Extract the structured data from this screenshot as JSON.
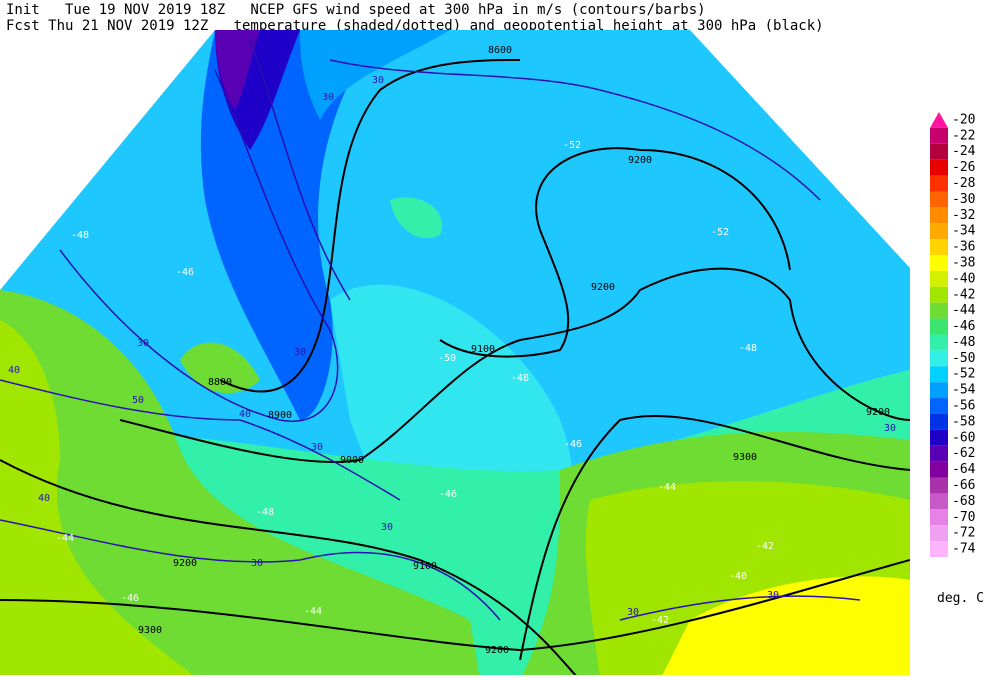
{
  "header": {
    "line1": "Init   Tue 19 NOV 2019 18Z   NCEP GFS wind speed at 300 hPa in m/s (contours/barbs)",
    "line2": "Fcst Thu 21 NOV 2019 12Z   temperature (shaded/dotted) and geopotential height at 300 hPa (black)"
  },
  "colorbar": {
    "unit": "deg. C",
    "entries": [
      {
        "value": -20,
        "color": "#ff14a0"
      },
      {
        "value": -22,
        "color": "#c8006e"
      },
      {
        "value": -24,
        "color": "#b4003c"
      },
      {
        "value": -26,
        "color": "#e60000"
      },
      {
        "value": -28,
        "color": "#ff3200"
      },
      {
        "value": -30,
        "color": "#ff6400"
      },
      {
        "value": -32,
        "color": "#ff8c00"
      },
      {
        "value": -34,
        "color": "#ffaa00"
      },
      {
        "value": -36,
        "color": "#ffd200"
      },
      {
        "value": -38,
        "color": "#ffff00"
      },
      {
        "value": -40,
        "color": "#d2f000"
      },
      {
        "value": -42,
        "color": "#a0e600"
      },
      {
        "value": -44,
        "color": "#6edc32"
      },
      {
        "value": -46,
        "color": "#3ce66e"
      },
      {
        "value": -48,
        "color": "#32f0aa"
      },
      {
        "value": -50,
        "color": "#32f0e6"
      },
      {
        "value": -52,
        "color": "#00d2ff"
      },
      {
        "value": -54,
        "color": "#00a0ff"
      },
      {
        "value": -56,
        "color": "#0064ff"
      },
      {
        "value": -58,
        "color": "#0032e6"
      },
      {
        "value": -60,
        "color": "#1e00c8"
      },
      {
        "value": -62,
        "color": "#5a00b4"
      },
      {
        "value": -64,
        "color": "#8200a0"
      },
      {
        "value": -66,
        "color": "#a832aa"
      },
      {
        "value": -68,
        "color": "#c85ac8"
      },
      {
        "value": -70,
        "color": "#e682e6"
      },
      {
        "value": -72,
        "color": "#f0a0f0"
      },
      {
        "value": -74,
        "color": "#ffb4ff"
      }
    ]
  },
  "map": {
    "height_labels": [
      "9200",
      "9200",
      "9100",
      "8800",
      "8900",
      "9000",
      "9300",
      "9200",
      "9200",
      "9100",
      "9300",
      "9200",
      "8600"
    ],
    "temp_labels": [
      "-52",
      "-52",
      "-48",
      "-48",
      "-46",
      "-50",
      "-48",
      "-46",
      "-46",
      "-44",
      "-42",
      "-40",
      "-42",
      "-44",
      "-46",
      "-48",
      "-44"
    ],
    "wind_labels": [
      "30",
      "30",
      "30",
      "30",
      "40",
      "50",
      "40",
      "30",
      "30",
      "30",
      "40",
      "30",
      "30",
      "30"
    ]
  }
}
